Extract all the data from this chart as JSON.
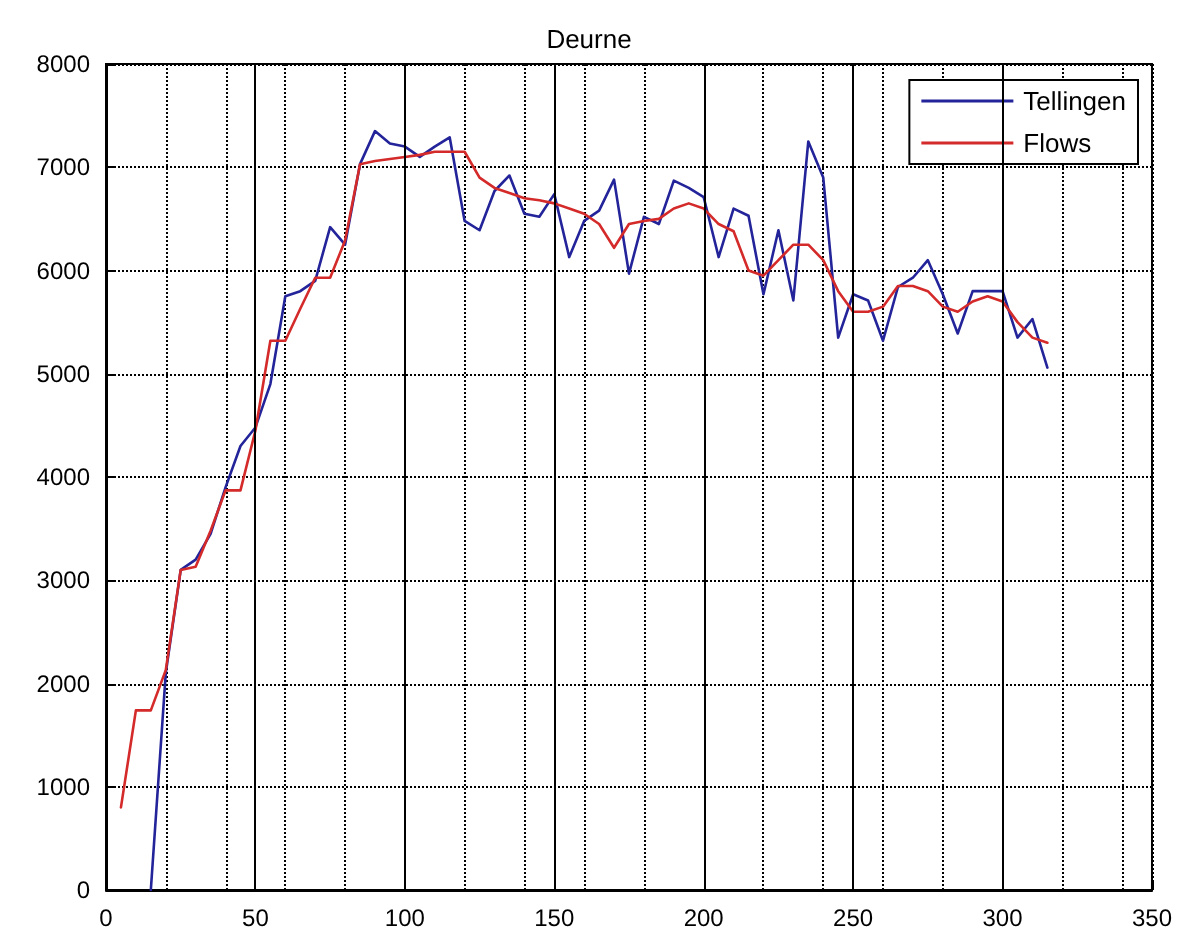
{
  "chart_data": {
    "type": "line",
    "title": "Deurne",
    "xlim": [
      0,
      350
    ],
    "xticks": [
      0,
      50,
      100,
      150,
      200,
      250,
      300,
      350
    ],
    "ylim": [
      0,
      8000
    ],
    "yticks": [
      0,
      1000,
      2000,
      3000,
      4000,
      5000,
      6000,
      7000,
      8000
    ],
    "grid": true,
    "legend": "top right",
    "marker": "none",
    "line_style": "solid",
    "series": [
      {
        "name": "Tellingen",
        "color": "#23239a",
        "x": [
          15,
          20,
          25,
          30,
          35,
          40,
          45,
          50,
          55,
          60,
          65,
          70,
          75,
          80,
          85,
          90,
          95,
          100,
          105,
          110,
          115,
          120,
          125,
          130,
          135,
          140,
          145,
          150,
          155,
          160,
          165,
          170,
          175,
          180,
          185,
          190,
          195,
          200,
          205,
          210,
          215,
          220,
          225,
          230,
          235,
          240,
          245,
          250,
          255,
          260,
          265,
          270,
          275,
          280,
          285,
          290,
          295,
          300,
          305,
          310,
          315
        ],
        "values": [
          0,
          2100,
          3100,
          3200,
          3450,
          3900,
          4300,
          4480,
          4900,
          5750,
          5800,
          5900,
          6420,
          6250,
          7030,
          7350,
          7230,
          7200,
          7100,
          7200,
          7290,
          6480,
          6390,
          6770,
          6920,
          6550,
          6520,
          6740,
          6130,
          6480,
          6580,
          6880,
          5970,
          6520,
          6450,
          6870,
          6800,
          6710,
          6130,
          6600,
          6530,
          5770,
          6390,
          5710,
          7250,
          6900,
          5350,
          5770,
          5710,
          5320,
          5840,
          5930,
          6100,
          5770,
          5390,
          5800,
          5800,
          5800,
          5350,
          5530,
          5060
        ]
      },
      {
        "name": "Flows",
        "color": "#d42a2a",
        "x": [
          5,
          10,
          15,
          20,
          25,
          30,
          35,
          40,
          45,
          50,
          55,
          60,
          65,
          70,
          75,
          80,
          85,
          90,
          95,
          100,
          105,
          110,
          115,
          120,
          125,
          130,
          135,
          140,
          145,
          150,
          155,
          160,
          165,
          170,
          175,
          180,
          185,
          190,
          195,
          200,
          205,
          210,
          215,
          220,
          225,
          230,
          235,
          240,
          245,
          250,
          255,
          260,
          265,
          270,
          275,
          280,
          285,
          290,
          295,
          300,
          305,
          310,
          315
        ],
        "values": [
          800,
          1740,
          1740,
          2130,
          3100,
          3130,
          3480,
          3870,
          3870,
          4450,
          5320,
          5320,
          5630,
          5930,
          5930,
          6290,
          7030,
          7060,
          7080,
          7100,
          7120,
          7150,
          7150,
          7150,
          6900,
          6800,
          6750,
          6700,
          6680,
          6650,
          6600,
          6550,
          6450,
          6220,
          6450,
          6480,
          6500,
          6600,
          6650,
          6600,
          6450,
          6380,
          6000,
          5950,
          6100,
          6250,
          6250,
          6100,
          5800,
          5600,
          5600,
          5650,
          5850,
          5850,
          5800,
          5650,
          5600,
          5700,
          5750,
          5700,
          5500,
          5350,
          5300
        ]
      }
    ],
    "ref_lines": [
      {
        "axis": "x",
        "value": 50,
        "color": "#000000"
      },
      {
        "axis": "x",
        "value": 100,
        "color": "#000000"
      },
      {
        "axis": "x",
        "value": 150,
        "color": "#000000"
      },
      {
        "axis": "x",
        "value": 200,
        "color": "#000000"
      },
      {
        "axis": "x",
        "value": 250,
        "color": "#000000"
      },
      {
        "axis": "x",
        "value": 300,
        "color": "#000000"
      }
    ]
  }
}
